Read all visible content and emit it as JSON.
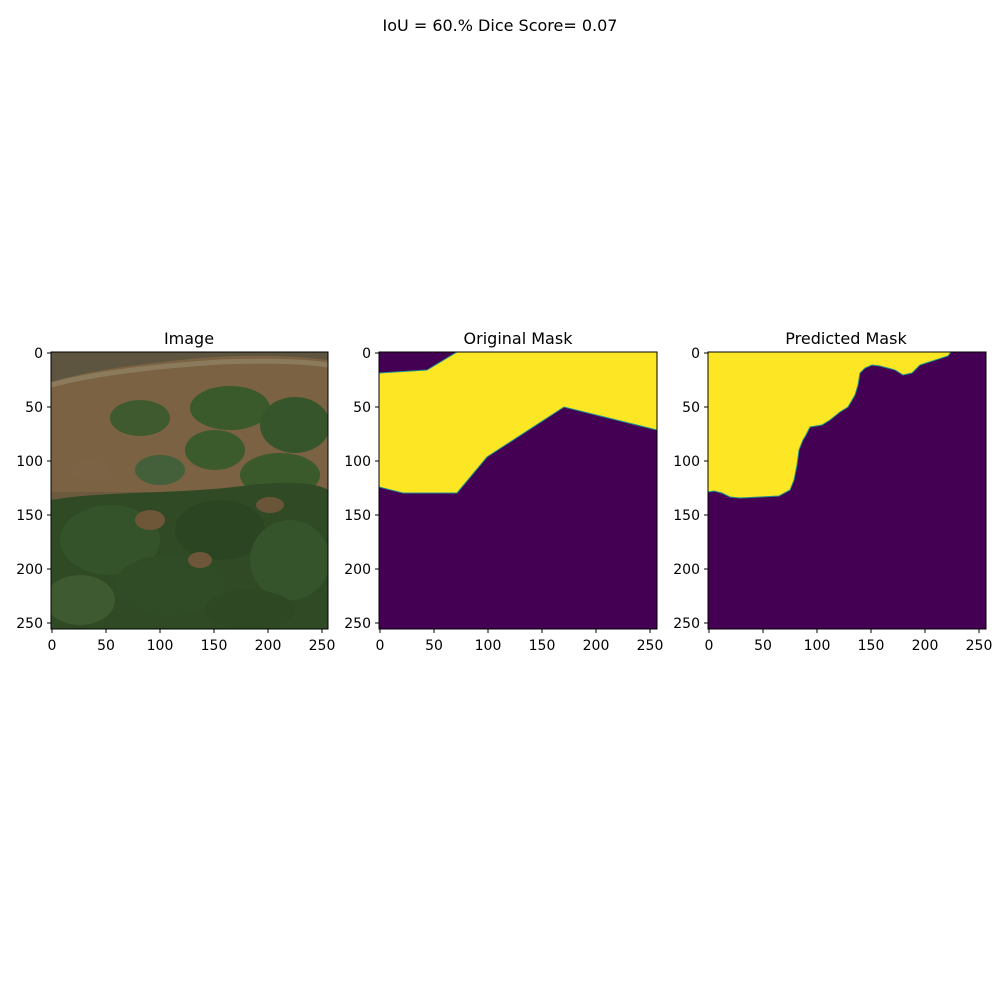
{
  "figure": {
    "suptitle": "IoU = 60.% Dice Score= 0.07",
    "panels": [
      {
        "title": "Image",
        "content": "satellite-image"
      },
      {
        "title": "Original Mask",
        "content": "ground-truth-mask"
      },
      {
        "title": "Predicted Mask",
        "content": "predicted-mask"
      }
    ],
    "axis": {
      "x_ticks": [
        "0",
        "50",
        "100",
        "150",
        "200",
        "250"
      ],
      "y_ticks": [
        "0",
        "50",
        "100",
        "150",
        "200",
        "250"
      ],
      "range": [
        0,
        256
      ]
    },
    "colors": {
      "mask_foreground": "#fde725",
      "mask_background": "#440154",
      "mask_edge": "#21918c",
      "terrain": "#6e5a3c",
      "vegetation": "#3b5a2c"
    }
  }
}
